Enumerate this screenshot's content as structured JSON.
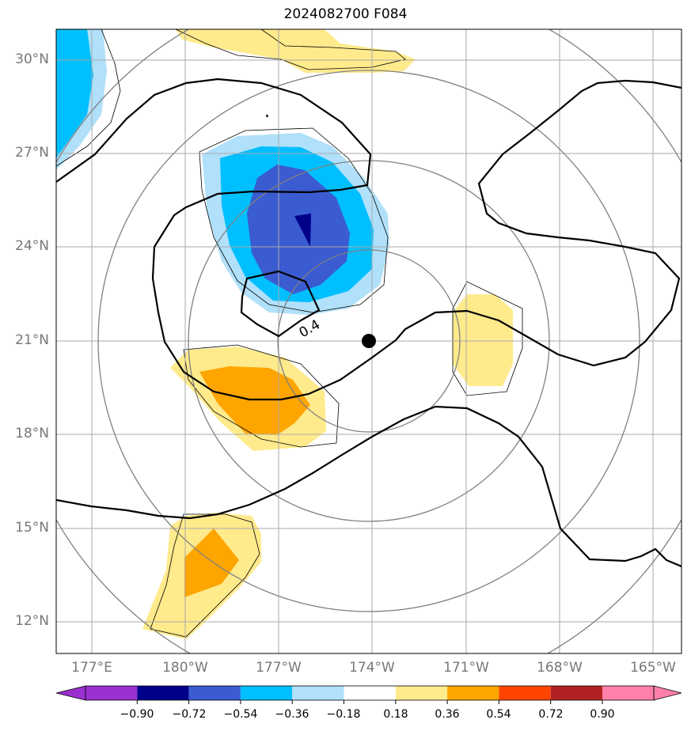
{
  "title": "2024082700 F084",
  "map": {
    "lat_labels": [
      "30°N",
      "27°N",
      "24°N",
      "21°N",
      "18°N",
      "15°N",
      "12°N"
    ],
    "lon_labels": [
      "177°E",
      "180°W",
      "177°W",
      "174°W",
      "171°W",
      "168°W",
      "165°W"
    ],
    "contour_label": "0.4",
    "storm_center": {
      "lat": "21°N",
      "lon": "174°W"
    }
  },
  "colorbar": {
    "labels": [
      "−0.90",
      "−0.72",
      "−0.54",
      "−0.36",
      "−0.18",
      "0.18",
      "0.36",
      "0.54",
      "0.72",
      "0.90"
    ],
    "colors": [
      "#9b30d0",
      "#00008b",
      "#3b5bd0",
      "#00bfff",
      "#b0e0fa",
      "#ffffff",
      "#ffea8c",
      "#ffa500",
      "#ff4500",
      "#b22222",
      "#ff80a8"
    ]
  },
  "colors": {
    "shade_light_blue": "#b0e0fa",
    "shade_blue": "#00bfff",
    "shade_mid_blue": "#3b5bd0",
    "shade_dark_blue": "#00008b",
    "shade_light_yellow": "#ffea8c",
    "shade_orange": "#ffa500",
    "grid": "#aaaaaa",
    "range_rings": "#808080"
  }
}
